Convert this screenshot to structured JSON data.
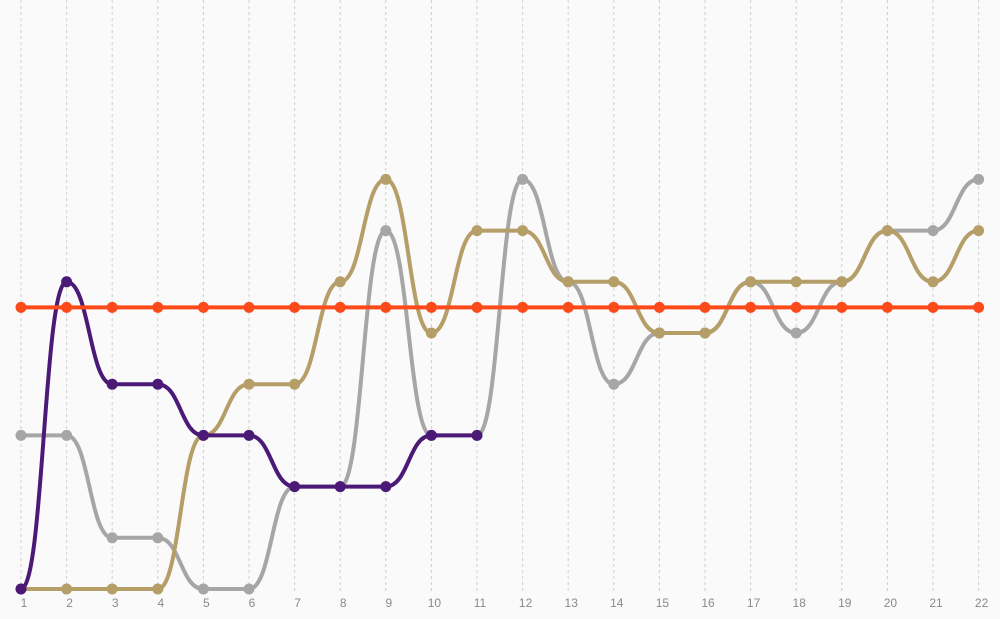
{
  "chart_data": {
    "type": "line",
    "title": "",
    "xlabel": "",
    "ylabel": "",
    "x": [
      1,
      2,
      3,
      4,
      5,
      6,
      7,
      8,
      9,
      10,
      11,
      12,
      13,
      14,
      15,
      16,
      17,
      18,
      19,
      20,
      21,
      22
    ],
    "ylim": [
      1,
      12.5
    ],
    "y_axis_reversed": true,
    "grid": "vertical-dashed",
    "legend": "none",
    "series": [
      {
        "color": "#a6a6a6",
        "values": [
          4,
          4,
          2,
          2,
          1,
          1,
          3,
          3,
          8,
          4,
          4,
          9,
          7,
          5,
          6,
          6,
          7,
          6,
          7,
          8,
          8,
          9
        ]
      },
      {
        "color": "#b59e67",
        "values": [
          1,
          1,
          1,
          1,
          4,
          5,
          5,
          7,
          9,
          6,
          8,
          8,
          7,
          7,
          6,
          6,
          7,
          7,
          7,
          8,
          7,
          8
        ]
      },
      {
        "color": "#4b1a77",
        "values": [
          1,
          7,
          5,
          5,
          4,
          4,
          3,
          3,
          3,
          4,
          4,
          null,
          null,
          null,
          null,
          null,
          null,
          null,
          null,
          null,
          null,
          null
        ]
      },
      {
        "color": "#fc4a1a",
        "values": [
          6.5,
          6.5,
          6.5,
          6.5,
          6.5,
          6.5,
          6.5,
          6.5,
          6.5,
          6.5,
          6.5,
          6.5,
          6.5,
          6.5,
          6.5,
          6.5,
          6.5,
          6.5,
          6.5,
          6.5,
          6.5,
          6.5
        ]
      }
    ]
  }
}
